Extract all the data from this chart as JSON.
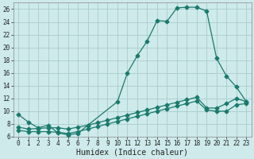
{
  "xlabel": "Humidex (Indice chaleur)",
  "xlim": [
    -0.5,
    23.5
  ],
  "ylim": [
    6,
    27
  ],
  "yticks": [
    6,
    8,
    10,
    12,
    14,
    16,
    18,
    20,
    22,
    24,
    26
  ],
  "xticks": [
    0,
    1,
    2,
    3,
    4,
    5,
    6,
    7,
    8,
    9,
    10,
    11,
    12,
    13,
    14,
    15,
    16,
    17,
    18,
    19,
    20,
    21,
    22,
    23
  ],
  "background_color": "#ceeaea",
  "grid_color": "#aacccc",
  "line_color": "#1a7a6e",
  "lines": [
    {
      "x": [
        0,
        1,
        2,
        3,
        4,
        5,
        6,
        7,
        10,
        11,
        12,
        13,
        14,
        15,
        16,
        17,
        18,
        19,
        20,
        21,
        22,
        23
      ],
      "y": [
        9.5,
        8.3,
        7.4,
        7.8,
        6.6,
        6.3,
        6.5,
        7.8,
        11.5,
        16.0,
        18.7,
        21.0,
        24.2,
        24.1,
        26.2,
        26.3,
        26.3,
        25.7,
        18.3,
        15.5,
        13.8,
        11.5
      ]
    },
    {
      "x": [
        0,
        1,
        2,
        3,
        4,
        5,
        6,
        7,
        8,
        9,
        10,
        11,
        12,
        13,
        14,
        15,
        16,
        17,
        18,
        19,
        20,
        21,
        22,
        23
      ],
      "y": [
        7.5,
        7.2,
        7.3,
        7.4,
        7.4,
        7.2,
        7.5,
        7.8,
        8.2,
        8.6,
        9.0,
        9.4,
        9.8,
        10.2,
        10.6,
        11.0,
        11.4,
        11.8,
        12.2,
        10.5,
        10.5,
        11.2,
        12.0,
        11.5
      ]
    },
    {
      "x": [
        0,
        1,
        2,
        3,
        4,
        5,
        6,
        7,
        8,
        9,
        10,
        11,
        12,
        13,
        14,
        15,
        16,
        17,
        18,
        19,
        20,
        21,
        22,
        23
      ],
      "y": [
        7.0,
        6.8,
        6.8,
        6.8,
        6.7,
        6.5,
        6.8,
        7.2,
        7.6,
        8.0,
        8.4,
        8.8,
        9.2,
        9.6,
        10.0,
        10.4,
        10.8,
        11.2,
        11.6,
        10.2,
        10.0,
        10.0,
        11.0,
        11.2
      ]
    }
  ],
  "xlabel_fontsize": 7,
  "tick_fontsize": 5.5,
  "marker_size": 2.5,
  "linewidth": 0.9
}
